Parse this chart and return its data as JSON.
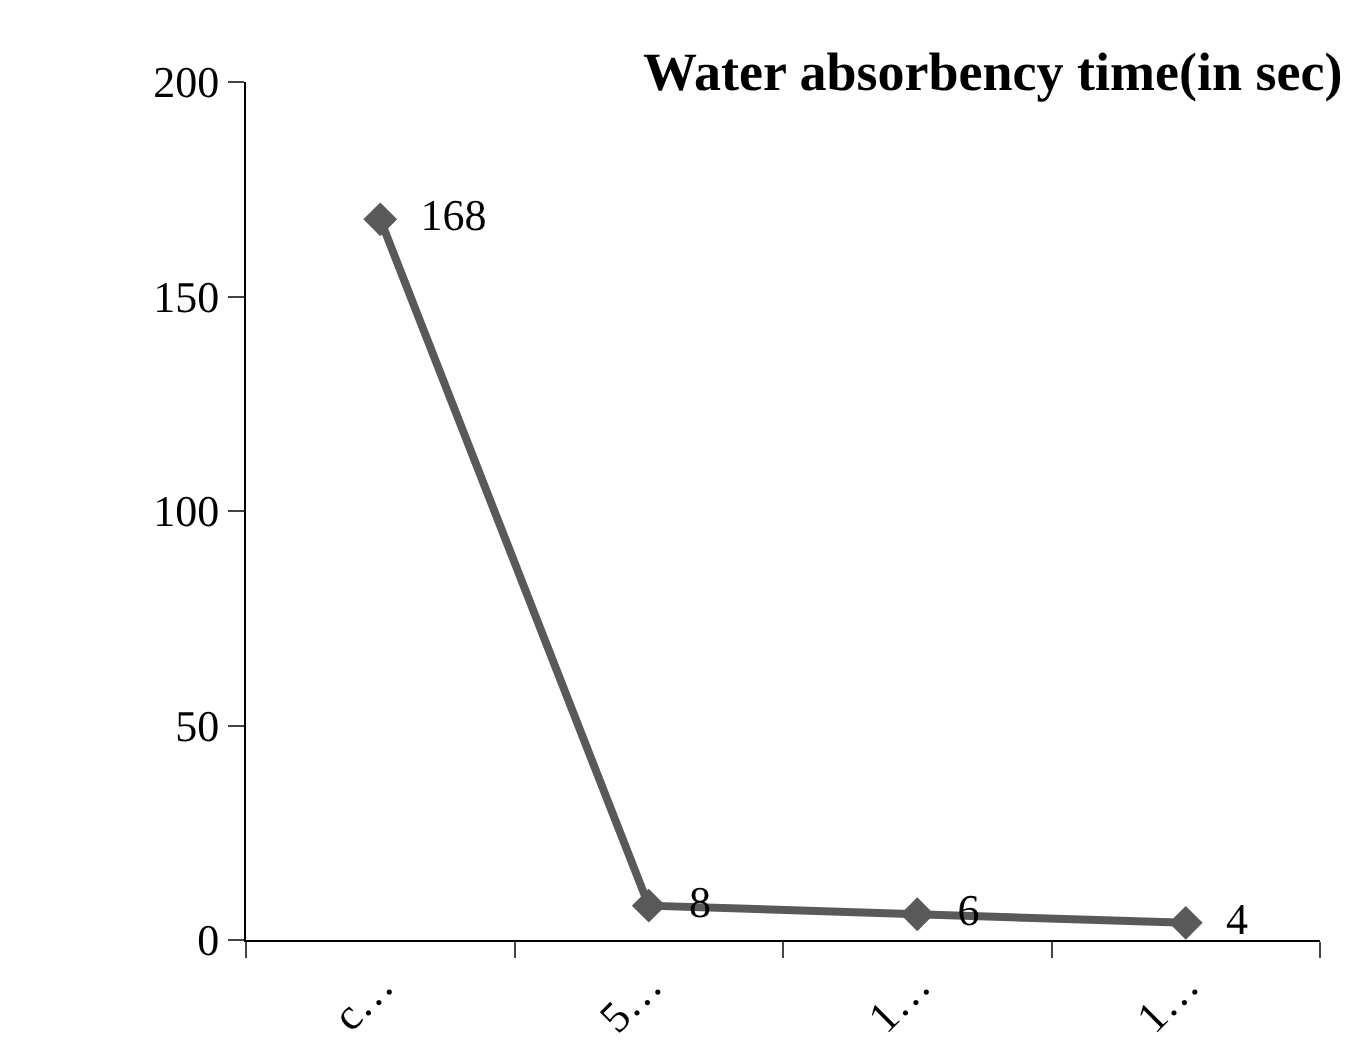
{
  "chart_data": {
    "type": "line",
    "title": "Water absorbency time(in sec)",
    "categories": [
      "c…",
      "5…",
      "1…",
      "1…"
    ],
    "series": [
      {
        "color": "#595959",
        "values": [
          168,
          8,
          6,
          4
        ]
      }
    ],
    "ylim": [
      0,
      200
    ],
    "yticks": [
      0,
      50,
      100,
      150,
      200
    ],
    "grid": false,
    "marker": "diamond",
    "line_style": "solid",
    "data_labels": true
  }
}
